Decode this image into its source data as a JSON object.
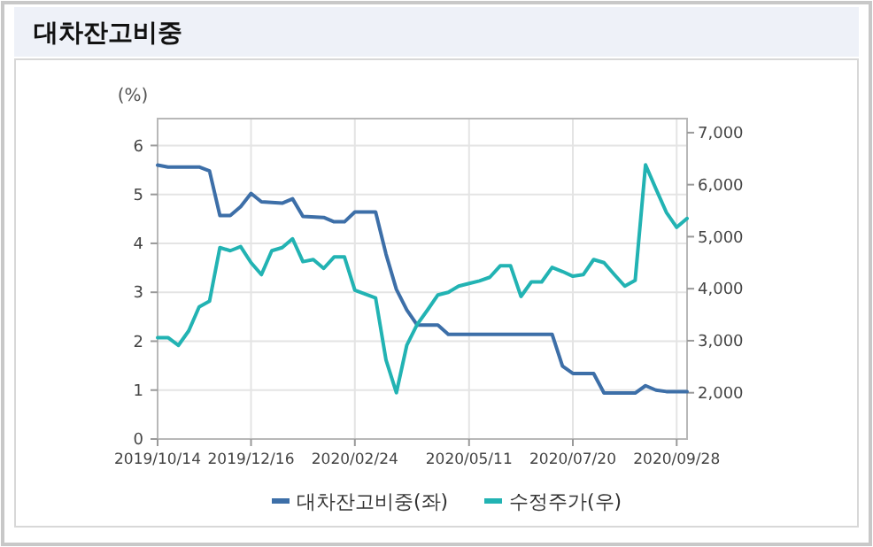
{
  "chart_data": {
    "type": "line",
    "title": "대차잔고비중",
    "ylabel": "(%)",
    "xlim": [
      "2019-10-14",
      "2020-10-05"
    ],
    "xticks": [
      {
        "value": "2019-10-14",
        "label": "2019/10/14"
      },
      {
        "value": "2019-12-16",
        "label": "2019/12/16"
      },
      {
        "value": "2020-02-24",
        "label": "2020/02/24"
      },
      {
        "value": "2020-05-11",
        "label": "2020/05/11"
      },
      {
        "value": "2020-07-20",
        "label": "2020/07/20"
      },
      {
        "value": "2020-09-28",
        "label": "2020/09/28"
      }
    ],
    "ylim": [
      0,
      6.55
    ],
    "yticks": [
      0,
      1,
      2,
      3,
      4,
      5,
      6
    ],
    "y2lim": [
      1110,
      7270
    ],
    "y2ticks": [
      {
        "value": 2000,
        "label": "2,000"
      },
      {
        "value": 3000,
        "label": "3,000"
      },
      {
        "value": 4000,
        "label": "4,000"
      },
      {
        "value": 5000,
        "label": "5,000"
      },
      {
        "value": 6000,
        "label": "6,000"
      },
      {
        "value": 7000,
        "label": "7,000"
      }
    ],
    "grid": true,
    "legend": "bottom",
    "series": [
      {
        "name": "대차잔고비중(좌)",
        "color": "#3d6fa8",
        "x": [
          "2019-10-14",
          "2019-10-21",
          "2019-11-11",
          "2019-11-18",
          "2019-11-25",
          "2019-12-02",
          "2019-12-09",
          "2019-12-16",
          "2019-12-23",
          "2020-01-06",
          "2020-01-13",
          "2020-01-20",
          "2020-02-03",
          "2020-02-10",
          "2020-02-17",
          "2020-02-24",
          "2020-03-09",
          "2020-03-16",
          "2020-03-23",
          "2020-03-30",
          "2020-04-06",
          "2020-04-20",
          "2020-04-27",
          "2020-07-06",
          "2020-07-13",
          "2020-07-20",
          "2020-08-03",
          "2020-08-10",
          "2020-08-31",
          "2020-09-07",
          "2020-09-14",
          "2020-09-21",
          "2020-10-05"
        ],
        "values": [
          5.6,
          5.56,
          5.56,
          5.48,
          4.57,
          4.57,
          4.75,
          5.02,
          4.85,
          4.82,
          4.91,
          4.55,
          4.53,
          4.44,
          4.44,
          4.64,
          4.64,
          3.78,
          3.06,
          2.64,
          2.33,
          2.33,
          2.14,
          2.14,
          1.49,
          1.34,
          1.34,
          0.94,
          0.94,
          1.09,
          1.0,
          0.97,
          0.97
        ]
      },
      {
        "name": "수정주가(우)",
        "color": "#22b3b3",
        "axis": "y2",
        "x": [
          "2019-10-14",
          "2019-10-21",
          "2019-10-28",
          "2019-11-04",
          "2019-11-11",
          "2019-11-18",
          "2019-11-25",
          "2019-12-02",
          "2019-12-09",
          "2019-12-16",
          "2019-12-23",
          "2019-12-30",
          "2020-01-06",
          "2020-01-13",
          "2020-01-20",
          "2020-01-27",
          "2020-02-03",
          "2020-02-10",
          "2020-02-17",
          "2020-02-24",
          "2020-03-09",
          "2020-03-16",
          "2020-03-23",
          "2020-03-30",
          "2020-04-06",
          "2020-04-13",
          "2020-04-20",
          "2020-04-27",
          "2020-05-04",
          "2020-05-11",
          "2020-05-18",
          "2020-05-25",
          "2020-06-01",
          "2020-06-08",
          "2020-06-15",
          "2020-06-22",
          "2020-06-29",
          "2020-07-06",
          "2020-07-13",
          "2020-07-20",
          "2020-07-27",
          "2020-08-03",
          "2020-08-10",
          "2020-08-17",
          "2020-08-24",
          "2020-08-31",
          "2020-09-07",
          "2020-09-14",
          "2020-09-21",
          "2020-09-28",
          "2020-10-05"
        ],
        "values": [
          3060,
          3060,
          2910,
          3190,
          3650,
          3760,
          4790,
          4730,
          4810,
          4500,
          4270,
          4730,
          4790,
          4960,
          4520,
          4560,
          4390,
          4610,
          4610,
          3970,
          3820,
          2630,
          2000,
          2910,
          3310,
          3590,
          3880,
          3930,
          4050,
          4100,
          4150,
          4220,
          4440,
          4440,
          3850,
          4130,
          4130,
          4410,
          4330,
          4240,
          4270,
          4560,
          4500,
          4270,
          4050,
          4160,
          6380,
          5920,
          5470,
          5180,
          5350
        ]
      }
    ]
  }
}
